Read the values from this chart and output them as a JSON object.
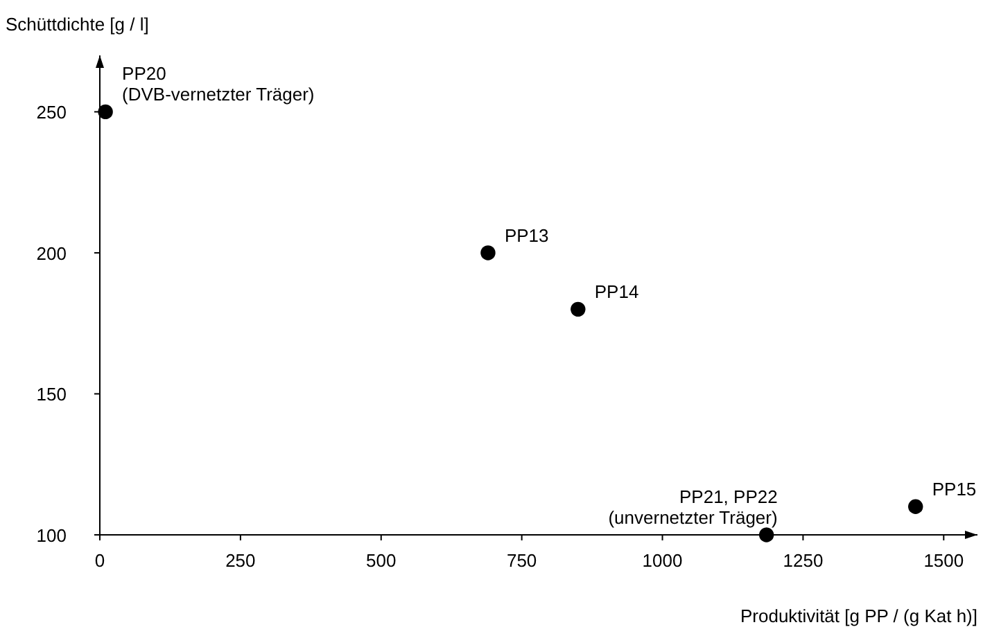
{
  "chart_data": {
    "type": "scatter",
    "xlabel": "Produktivität [g PP / (g Kat h)]",
    "ylabel": "Schüttdichte [g / l]",
    "x": [
      10,
      690,
      850,
      1185,
      1450
    ],
    "series": [
      {
        "color": "#000000",
        "values": [
          250,
          200,
          180,
          100,
          110
        ]
      }
    ],
    "xlim": [
      0,
      1560
    ],
    "ylim": [
      100,
      270
    ],
    "xticks": [
      0,
      250,
      500,
      750,
      1000,
      1250,
      1500
    ],
    "yticks": [
      100,
      150,
      200,
      250
    ],
    "grid": false,
    "marker": "circle",
    "annotations": [
      {
        "text": "PP20\n(DVB-vernetzter Träger)",
        "x": 10,
        "y": 250
      },
      {
        "text": "PP13",
        "x": 690,
        "y": 200
      },
      {
        "text": "PP14",
        "x": 850,
        "y": 180
      },
      {
        "text": "PP21, PP22\n(unvernetzter Träger)",
        "x": 1185,
        "y": 100
      },
      {
        "text": "PP15",
        "x": 1450,
        "y": 110
      }
    ]
  }
}
